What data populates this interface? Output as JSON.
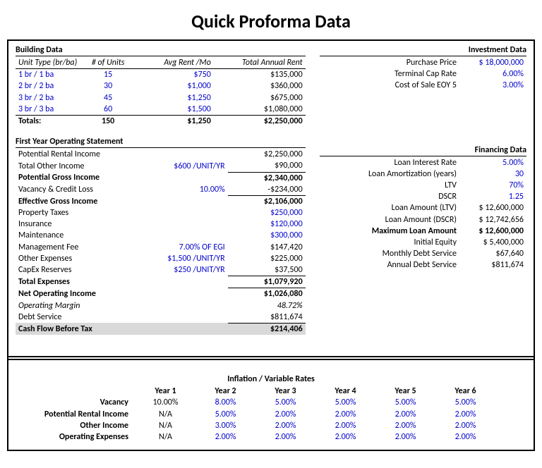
{
  "title": "Quick Proforma Data",
  "building": {
    "heading": "Building Data",
    "cols": {
      "type": "Unit Type (br/ba)",
      "units": "# of Units",
      "rent": "Avg Rent /Mo",
      "total": "Total Annual Rent"
    },
    "rows": [
      {
        "type": "1 br / 1 ba",
        "units": "15",
        "rent": "$750",
        "total": "$135,000"
      },
      {
        "type": "2 br / 2 ba",
        "units": "30",
        "rent": "$1,000",
        "total": "$360,000"
      },
      {
        "type": "3 br / 2 ba",
        "units": "45",
        "rent": "$1,250",
        "total": "$675,000"
      },
      {
        "type": "3 br / 3 ba",
        "units": "60",
        "rent": "$1,500",
        "total": "$1,080,000"
      }
    ],
    "totals": {
      "label": "Totals:",
      "units": "150",
      "rent": "$1,250",
      "total": "$2,250,000"
    }
  },
  "investment": {
    "heading": "Investment Data",
    "rows": [
      {
        "label": "Purchase Price",
        "value": "$ 18,000,000",
        "blue": true
      },
      {
        "label": "Terminal Cap Rate",
        "value": "6.00%",
        "blue": true
      },
      {
        "label": "Cost of Sale EOY 5",
        "value": "3.00%",
        "blue": true
      }
    ]
  },
  "fyos": {
    "heading": "First Year Operating Statement",
    "rows": [
      {
        "label": "Potential Rental Income",
        "mid": "",
        "value": "$2,250,000"
      },
      {
        "label": "Total Other Income",
        "mid": "$600 /UNIT/YR",
        "value": "$90,000",
        "midblue": true,
        "uline": true
      },
      {
        "label": "Potential Gross Income",
        "mid": "",
        "value": "$2,340,000",
        "bold": true
      },
      {
        "label": "Vacancy & Credit Loss",
        "mid": "10.00%",
        "value": "-$234,000",
        "midblue": true,
        "uline": true
      },
      {
        "label": "Effective Gross Income",
        "mid": "",
        "value": "$2,106,000",
        "bold": true
      },
      {
        "label": "Property Taxes",
        "mid": "",
        "value": "$250,000",
        "valblue": true
      },
      {
        "label": "Insurance",
        "mid": "",
        "value": "$120,000",
        "valblue": true
      },
      {
        "label": "Maintenance",
        "mid": "",
        "value": "$300,000",
        "valblue": true
      },
      {
        "label": "Management Fee",
        "mid": "7.00% OF EGI",
        "value": "$147,420",
        "midblue": true
      },
      {
        "label": "Other Expenses",
        "mid": "$1,500 /UNIT/YR",
        "value": "$225,000",
        "midblue": true
      },
      {
        "label": "CapEx Reserves",
        "mid": "$250 /UNIT/YR",
        "value": "$37,500",
        "midblue": true,
        "uline": true
      },
      {
        "label": "Total Expenses",
        "mid": "",
        "value": "$1,079,920",
        "bold": true,
        "uline": true
      },
      {
        "label": "Net Operating Income",
        "mid": "",
        "value": "$1,026,080",
        "bold": true
      },
      {
        "label": "Operating Margin",
        "mid": "",
        "value": "48.72%",
        "italic": true
      },
      {
        "label": "Debt Service",
        "mid": "",
        "value": "$811,674",
        "uline": true
      },
      {
        "label": "Cash Flow Before Tax",
        "mid": "",
        "value": "$214,406",
        "bold": true,
        "highlight": true
      }
    ]
  },
  "financing": {
    "heading": "Financing Data",
    "rows": [
      {
        "label": "Loan Interest Rate",
        "value": "5.00%",
        "blue": true
      },
      {
        "label": "Loan Amortization (years)",
        "value": "30",
        "blue": true
      },
      {
        "label": "LTV",
        "value": "70%",
        "blue": true
      },
      {
        "label": "DSCR",
        "value": "1.25",
        "blue": true
      },
      {
        "label": "Loan Amount (LTV)",
        "value": "$ 12,600,000"
      },
      {
        "label": "Loan Amount (DSCR)",
        "value": "$ 12,742,656"
      },
      {
        "label": "Maximum Loan Amount",
        "value": "$ 12,600,000",
        "bold": true
      },
      {
        "label": "Initial Equity",
        "value": "$   5,400,000"
      },
      {
        "label": "Monthly Debt Service",
        "value": "$67,640"
      },
      {
        "label": "Annual Debt Service",
        "value": "$811,674"
      }
    ]
  },
  "rates": {
    "heading": "Inflation / Variable Rates",
    "years": [
      "Year 1",
      "Year 2",
      "Year 3",
      "Year 4",
      "Year 5",
      "Year 6"
    ],
    "rows": [
      {
        "label": "Vacancy",
        "vals": [
          "10.00%",
          "8.00%",
          "5.00%",
          "5.00%",
          "5.00%",
          "5.00%"
        ],
        "y1blue": false
      },
      {
        "label": "Potential Rental Income",
        "vals": [
          "N/A",
          "5.00%",
          "2.00%",
          "2.00%",
          "2.00%",
          "2.00%"
        ]
      },
      {
        "label": "Other Income",
        "vals": [
          "N/A",
          "3.00%",
          "2.00%",
          "2.00%",
          "2.00%",
          "2.00%"
        ]
      },
      {
        "label": "Operating Expenses",
        "vals": [
          "N/A",
          "2.00%",
          "2.00%",
          "2.00%",
          "2.00%",
          "2.00%"
        ]
      }
    ]
  }
}
